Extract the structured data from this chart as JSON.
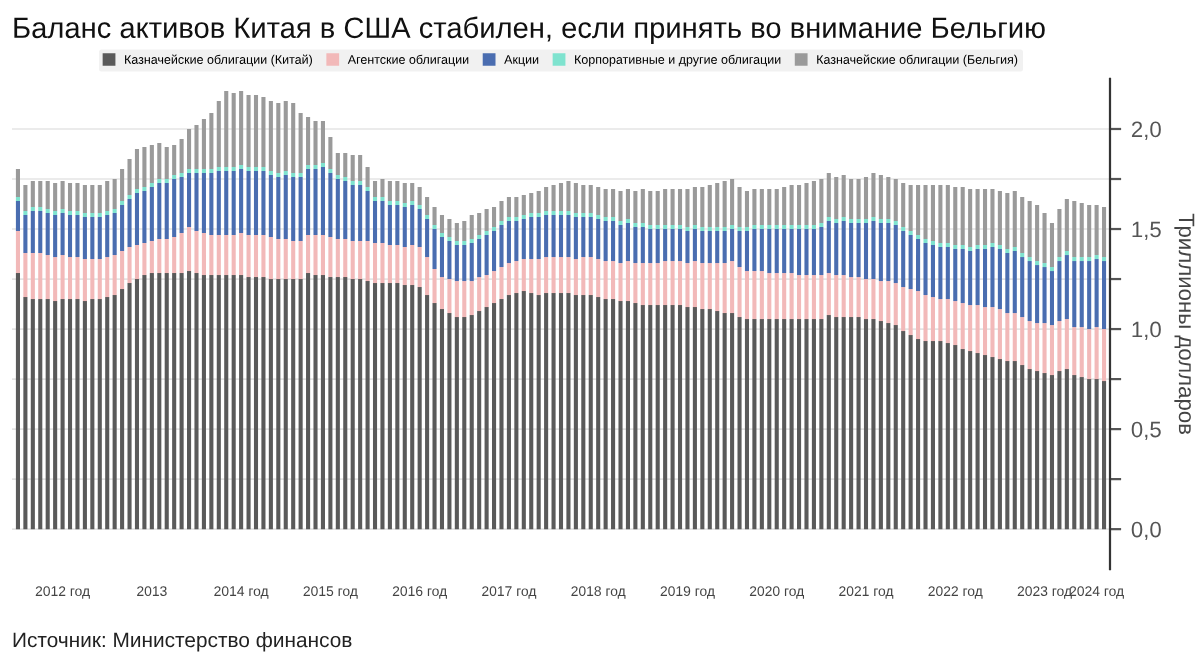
{
  "chart_data": {
    "type": "bar",
    "stacked": true,
    "title": "Баланс активов Китая в США стабилен, если принять во внимание Бельгию",
    "ylabel": "Триллионы долларов",
    "annotations": [
      "Источник: Министерство финансов"
    ],
    "categories": [
      null,
      null,
      null,
      null,
      null,
      null,
      "2012 год",
      null,
      null,
      null,
      null,
      null,
      null,
      null,
      null,
      null,
      null,
      null,
      "2013",
      null,
      null,
      null,
      null,
      null,
      null,
      null,
      null,
      null,
      null,
      null,
      "2014 год",
      null,
      null,
      null,
      null,
      null,
      null,
      null,
      null,
      null,
      null,
      null,
      "2015 год",
      null,
      null,
      null,
      null,
      null,
      null,
      null,
      null,
      null,
      null,
      null,
      "2016 год",
      null,
      null,
      null,
      null,
      null,
      null,
      null,
      null,
      null,
      null,
      null,
      "2017 год",
      null,
      null,
      null,
      null,
      null,
      null,
      null,
      null,
      null,
      null,
      null,
      "2018 год",
      null,
      null,
      null,
      null,
      null,
      null,
      null,
      null,
      null,
      null,
      null,
      "2019 год",
      null,
      null,
      null,
      null,
      null,
      null,
      null,
      null,
      null,
      null,
      null,
      "2020 год",
      null,
      null,
      null,
      null,
      null,
      null,
      null,
      null,
      null,
      null,
      null,
      "2021 год",
      null,
      null,
      null,
      null,
      null,
      null,
      null,
      null,
      null,
      null,
      null,
      "2022 год",
      null,
      null,
      null,
      null,
      null,
      null,
      null,
      null,
      null,
      null,
      null,
      "2023 год",
      null,
      null,
      null,
      null,
      null,
      null,
      "2024 год",
      null
    ],
    "series": [
      {
        "name": "Казначейские облигации (Китай)",
        "color": "#5a5a5a",
        "values": [
          1.28,
          1.16,
          1.15,
          1.15,
          1.15,
          1.14,
          1.15,
          1.15,
          1.15,
          1.14,
          1.15,
          1.15,
          1.16,
          1.17,
          1.2,
          1.23,
          1.25,
          1.27,
          1.28,
          1.28,
          1.28,
          1.28,
          1.28,
          1.29,
          1.28,
          1.27,
          1.27,
          1.27,
          1.27,
          1.27,
          1.27,
          1.26,
          1.26,
          1.26,
          1.25,
          1.25,
          1.25,
          1.25,
          1.25,
          1.28,
          1.27,
          1.27,
          1.26,
          1.26,
          1.26,
          1.25,
          1.25,
          1.24,
          1.23,
          1.23,
          1.23,
          1.23,
          1.22,
          1.22,
          1.21,
          1.17,
          1.13,
          1.1,
          1.08,
          1.06,
          1.06,
          1.07,
          1.09,
          1.11,
          1.13,
          1.15,
          1.17,
          1.18,
          1.19,
          1.18,
          1.17,
          1.18,
          1.18,
          1.18,
          1.18,
          1.17,
          1.17,
          1.17,
          1.16,
          1.15,
          1.15,
          1.14,
          1.14,
          1.13,
          1.12,
          1.12,
          1.12,
          1.12,
          1.12,
          1.12,
          1.11,
          1.11,
          1.1,
          1.1,
          1.09,
          1.08,
          1.08,
          1.06,
          1.05,
          1.05,
          1.05,
          1.05,
          1.05,
          1.05,
          1.05,
          1.05,
          1.05,
          1.05,
          1.05,
          1.07,
          1.06,
          1.06,
          1.06,
          1.06,
          1.05,
          1.05,
          1.04,
          1.03,
          1.02,
          0.99,
          0.97,
          0.95,
          0.94,
          0.94,
          0.94,
          0.93,
          0.92,
          0.9,
          0.89,
          0.88,
          0.87,
          0.86,
          0.85,
          0.84,
          0.84,
          0.82,
          0.8,
          0.79,
          0.78,
          0.77,
          0.79,
          0.8,
          0.77,
          0.76,
          0.75,
          0.75,
          0.74
        ]
      },
      {
        "name": "Агентские облигации",
        "color": "#f2b9b9",
        "values": [
          0.21,
          0.22,
          0.23,
          0.23,
          0.22,
          0.22,
          0.22,
          0.21,
          0.21,
          0.21,
          0.2,
          0.2,
          0.2,
          0.2,
          0.19,
          0.18,
          0.17,
          0.16,
          0.16,
          0.17,
          0.17,
          0.18,
          0.2,
          0.22,
          0.21,
          0.21,
          0.2,
          0.2,
          0.2,
          0.2,
          0.21,
          0.21,
          0.21,
          0.21,
          0.21,
          0.2,
          0.2,
          0.19,
          0.19,
          0.19,
          0.2,
          0.2,
          0.2,
          0.19,
          0.19,
          0.19,
          0.19,
          0.2,
          0.2,
          0.2,
          0.19,
          0.19,
          0.19,
          0.2,
          0.2,
          0.19,
          0.17,
          0.16,
          0.17,
          0.18,
          0.18,
          0.17,
          0.17,
          0.16,
          0.16,
          0.16,
          0.16,
          0.16,
          0.16,
          0.17,
          0.18,
          0.18,
          0.18,
          0.18,
          0.18,
          0.18,
          0.19,
          0.19,
          0.19,
          0.19,
          0.19,
          0.19,
          0.2,
          0.2,
          0.21,
          0.21,
          0.21,
          0.22,
          0.22,
          0.22,
          0.22,
          0.23,
          0.23,
          0.23,
          0.24,
          0.25,
          0.26,
          0.25,
          0.24,
          0.24,
          0.24,
          0.23,
          0.23,
          0.23,
          0.23,
          0.22,
          0.22,
          0.22,
          0.22,
          0.21,
          0.21,
          0.21,
          0.2,
          0.2,
          0.2,
          0.2,
          0.2,
          0.21,
          0.21,
          0.22,
          0.23,
          0.24,
          0.23,
          0.22,
          0.21,
          0.22,
          0.22,
          0.23,
          0.23,
          0.24,
          0.24,
          0.25,
          0.25,
          0.24,
          0.24,
          0.24,
          0.24,
          0.24,
          0.25,
          0.25,
          0.25,
          0.25,
          0.24,
          0.25,
          0.25,
          0.26,
          0.26
        ]
      },
      {
        "name": "Акции",
        "color": "#4a6db0",
        "values": [
          0.15,
          0.19,
          0.21,
          0.21,
          0.21,
          0.21,
          0.21,
          0.21,
          0.21,
          0.21,
          0.21,
          0.21,
          0.21,
          0.21,
          0.23,
          0.24,
          0.26,
          0.26,
          0.27,
          0.28,
          0.28,
          0.29,
          0.28,
          0.27,
          0.29,
          0.3,
          0.31,
          0.32,
          0.32,
          0.32,
          0.32,
          0.32,
          0.32,
          0.32,
          0.31,
          0.31,
          0.32,
          0.32,
          0.32,
          0.33,
          0.33,
          0.34,
          0.32,
          0.3,
          0.29,
          0.28,
          0.28,
          0.25,
          0.21,
          0.21,
          0.2,
          0.2,
          0.2,
          0.2,
          0.19,
          0.19,
          0.2,
          0.2,
          0.19,
          0.18,
          0.18,
          0.19,
          0.19,
          0.2,
          0.2,
          0.21,
          0.21,
          0.2,
          0.2,
          0.21,
          0.21,
          0.21,
          0.21,
          0.21,
          0.21,
          0.21,
          0.2,
          0.2,
          0.2,
          0.2,
          0.2,
          0.19,
          0.19,
          0.18,
          0.18,
          0.17,
          0.17,
          0.16,
          0.16,
          0.16,
          0.16,
          0.16,
          0.16,
          0.16,
          0.16,
          0.16,
          0.16,
          0.18,
          0.2,
          0.21,
          0.21,
          0.22,
          0.22,
          0.22,
          0.22,
          0.23,
          0.23,
          0.23,
          0.24,
          0.26,
          0.26,
          0.27,
          0.27,
          0.27,
          0.28,
          0.29,
          0.29,
          0.29,
          0.29,
          0.28,
          0.27,
          0.26,
          0.26,
          0.26,
          0.26,
          0.26,
          0.26,
          0.27,
          0.27,
          0.28,
          0.29,
          0.3,
          0.3,
          0.3,
          0.31,
          0.3,
          0.3,
          0.29,
          0.28,
          0.27,
          0.3,
          0.32,
          0.33,
          0.33,
          0.34,
          0.34,
          0.34
        ]
      },
      {
        "name": "Корпоративные и другие облигации",
        "color": "#7fe3cf",
        "values": [
          0.02,
          0.02,
          0.02,
          0.02,
          0.02,
          0.02,
          0.02,
          0.02,
          0.02,
          0.02,
          0.02,
          0.02,
          0.02,
          0.02,
          0.02,
          0.02,
          0.02,
          0.02,
          0.02,
          0.02,
          0.02,
          0.02,
          0.02,
          0.02,
          0.02,
          0.02,
          0.02,
          0.02,
          0.02,
          0.02,
          0.02,
          0.02,
          0.02,
          0.02,
          0.02,
          0.02,
          0.02,
          0.02,
          0.02,
          0.02,
          0.02,
          0.02,
          0.02,
          0.02,
          0.02,
          0.02,
          0.02,
          0.02,
          0.02,
          0.02,
          0.02,
          0.02,
          0.02,
          0.02,
          0.02,
          0.02,
          0.02,
          0.02,
          0.02,
          0.02,
          0.02,
          0.02,
          0.02,
          0.02,
          0.02,
          0.02,
          0.02,
          0.02,
          0.02,
          0.02,
          0.02,
          0.02,
          0.02,
          0.02,
          0.02,
          0.02,
          0.02,
          0.02,
          0.02,
          0.02,
          0.02,
          0.02,
          0.02,
          0.02,
          0.02,
          0.02,
          0.02,
          0.02,
          0.02,
          0.02,
          0.02,
          0.02,
          0.02,
          0.02,
          0.02,
          0.02,
          0.02,
          0.02,
          0.02,
          0.02,
          0.02,
          0.02,
          0.02,
          0.02,
          0.02,
          0.02,
          0.02,
          0.02,
          0.02,
          0.02,
          0.02,
          0.02,
          0.02,
          0.02,
          0.02,
          0.02,
          0.02,
          0.02,
          0.02,
          0.02,
          0.02,
          0.02,
          0.02,
          0.02,
          0.02,
          0.02,
          0.02,
          0.02,
          0.02,
          0.02,
          0.02,
          0.02,
          0.02,
          0.02,
          0.02,
          0.02,
          0.02,
          0.02,
          0.02,
          0.02,
          0.02,
          0.02,
          0.02,
          0.02,
          0.02,
          0.02,
          0.02
        ]
      },
      {
        "name": "Казначейские облигации (Бельгия)",
        "color": "#9a9a9a",
        "values": [
          0.14,
          0.13,
          0.13,
          0.13,
          0.14,
          0.14,
          0.14,
          0.14,
          0.14,
          0.14,
          0.14,
          0.14,
          0.15,
          0.15,
          0.16,
          0.18,
          0.2,
          0.2,
          0.19,
          0.18,
          0.16,
          0.15,
          0.17,
          0.2,
          0.22,
          0.25,
          0.28,
          0.33,
          0.38,
          0.37,
          0.37,
          0.36,
          0.36,
          0.35,
          0.35,
          0.35,
          0.35,
          0.35,
          0.3,
          0.24,
          0.22,
          0.21,
          0.16,
          0.11,
          0.12,
          0.13,
          0.13,
          0.1,
          0.08,
          0.09,
          0.1,
          0.1,
          0.1,
          0.09,
          0.09,
          0.09,
          0.09,
          0.09,
          0.09,
          0.09,
          0.1,
          0.12,
          0.11,
          0.11,
          0.1,
          0.1,
          0.1,
          0.1,
          0.1,
          0.1,
          0.11,
          0.12,
          0.13,
          0.14,
          0.15,
          0.15,
          0.14,
          0.14,
          0.14,
          0.14,
          0.14,
          0.15,
          0.15,
          0.16,
          0.17,
          0.17,
          0.17,
          0.18,
          0.18,
          0.18,
          0.19,
          0.19,
          0.2,
          0.21,
          0.22,
          0.23,
          0.23,
          0.2,
          0.18,
          0.18,
          0.18,
          0.18,
          0.18,
          0.19,
          0.2,
          0.2,
          0.21,
          0.22,
          0.22,
          0.22,
          0.21,
          0.21,
          0.2,
          0.2,
          0.21,
          0.22,
          0.22,
          0.21,
          0.21,
          0.22,
          0.23,
          0.25,
          0.27,
          0.28,
          0.29,
          0.29,
          0.29,
          0.29,
          0.29,
          0.28,
          0.28,
          0.27,
          0.27,
          0.28,
          0.28,
          0.28,
          0.28,
          0.28,
          0.25,
          0.22,
          0.24,
          0.26,
          0.28,
          0.27,
          0.26,
          0.25,
          0.25
        ]
      }
    ],
    "ylim": [
      -0.2,
      2.25
    ],
    "yticks": [
      {
        "value": 0,
        "label": "0,0"
      },
      {
        "value": 0.25,
        "label": null
      },
      {
        "value": 0.5,
        "label": "0,5"
      },
      {
        "value": 0.75,
        "label": null
      },
      {
        "value": 1.0,
        "label": "1,0"
      },
      {
        "value": 1.25,
        "label": null
      },
      {
        "value": 1.5,
        "label": "1,5"
      },
      {
        "value": 1.75,
        "label": null
      },
      {
        "value": 2.0,
        "label": "2,0"
      }
    ],
    "grid": "y",
    "legend": "top"
  }
}
